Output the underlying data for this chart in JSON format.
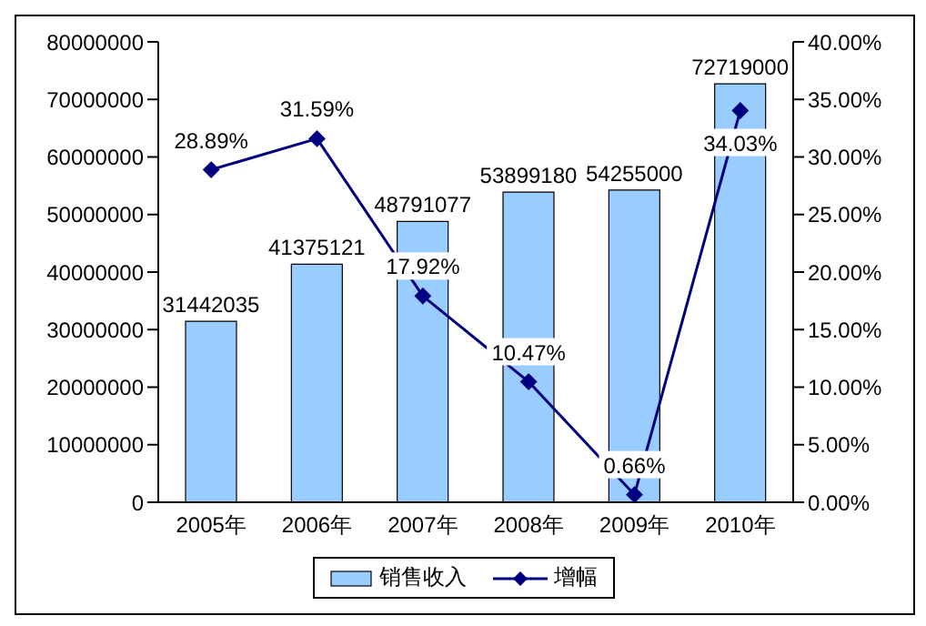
{
  "chart_data": {
    "type": "bar",
    "categories": [
      "2005年",
      "2006年",
      "2007年",
      "2008年",
      "2009年",
      "2010年"
    ],
    "series": [
      {
        "name": "销售收入",
        "color": "#99ccff",
        "values": [
          31442035,
          41375121,
          48791077,
          53899180,
          54255000,
          72719000
        ],
        "value_labels": [
          "31442035",
          "41375121",
          "48791077",
          "53899180",
          "54255000",
          "72719000"
        ]
      },
      {
        "name": "增幅",
        "type": "line",
        "axis": "y2",
        "color": "#000080",
        "values": [
          28.89,
          31.59,
          17.92,
          10.47,
          0.66,
          34.03
        ],
        "value_labels": [
          "28.89%",
          "31.59%",
          "17.92%",
          "10.47%",
          "0.66%",
          "34.03%"
        ]
      }
    ],
    "ylim": [
      0,
      80000000
    ],
    "yticks": [
      0,
      10000000,
      20000000,
      30000000,
      40000000,
      50000000,
      60000000,
      70000000,
      80000000
    ],
    "y2lim": [
      0,
      40
    ],
    "y2ticks": [
      {
        "value": 0,
        "label": "0.00%"
      },
      {
        "value": 5,
        "label": "5.00%"
      },
      {
        "value": 10,
        "label": "10.00%"
      },
      {
        "value": 15,
        "label": "15.00%"
      },
      {
        "value": 20,
        "label": "20.00%"
      },
      {
        "value": 25,
        "label": "25.00%"
      },
      {
        "value": 30,
        "label": "30.00%"
      },
      {
        "value": 35,
        "label": "35.00%"
      },
      {
        "value": 40,
        "label": "40.00%"
      }
    ],
    "legend": "bottom",
    "marker": "diamond",
    "grid": false
  }
}
